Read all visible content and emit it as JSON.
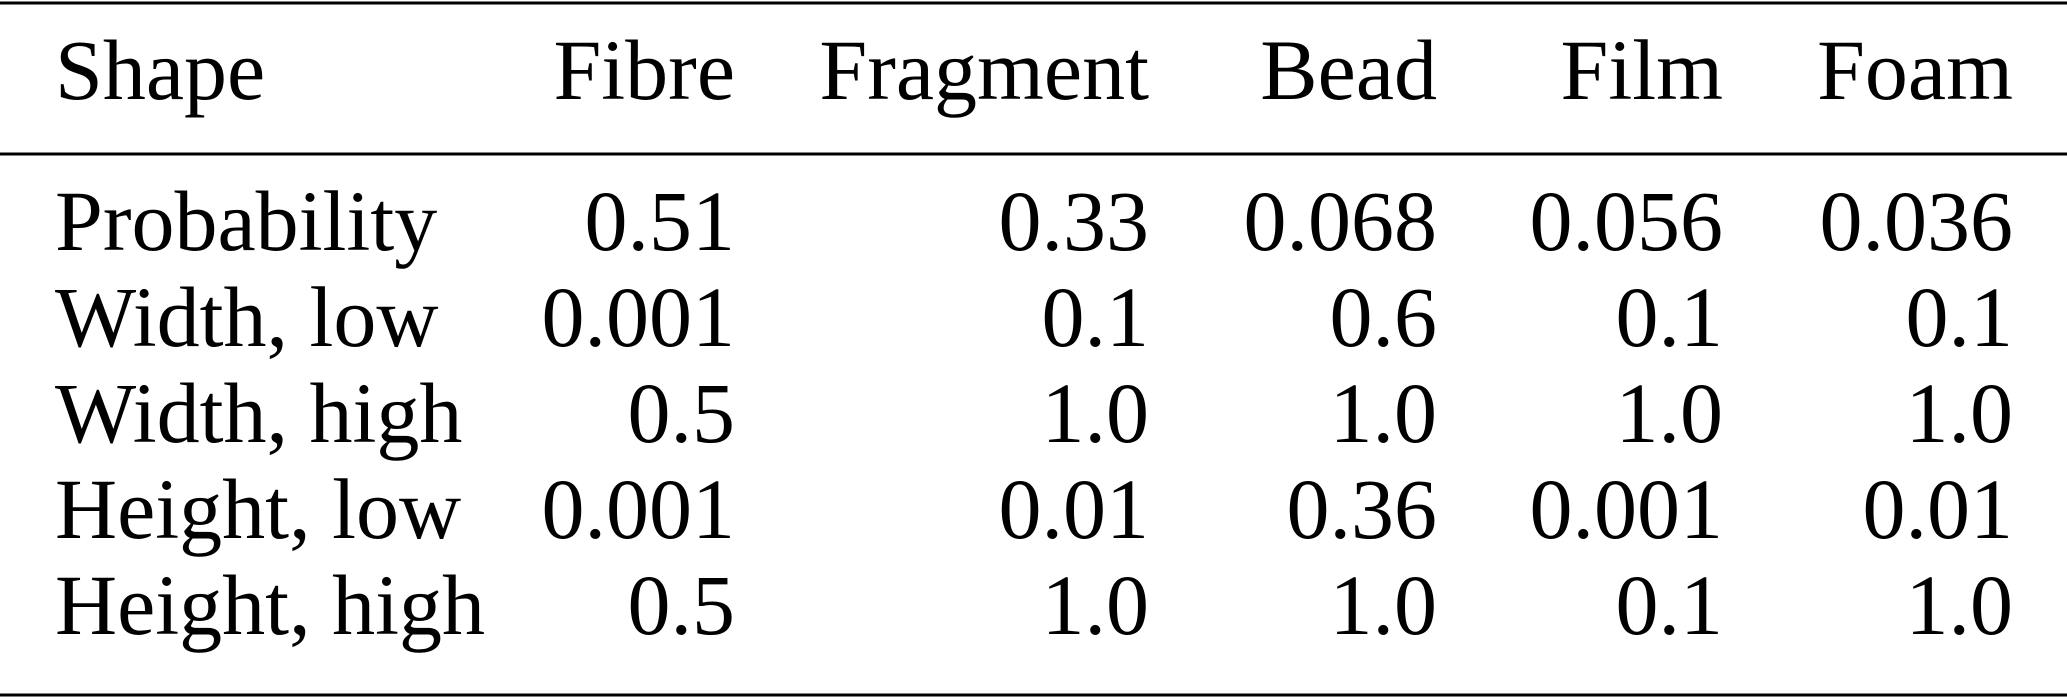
{
  "table": {
    "header": [
      "Shape",
      "Fibre",
      "Fragment",
      "Bead",
      "Film",
      "Foam"
    ],
    "rows": [
      [
        "Probability",
        "0.51",
        "0.33",
        "0.068",
        "0.056",
        "0.036"
      ],
      [
        "Width, low",
        "0.001",
        "0.1",
        "0.6",
        "0.1",
        "0.1"
      ],
      [
        "Width, high",
        "0.5",
        "1.0",
        "1.0",
        "1.0",
        "1.0"
      ],
      [
        "Height, low",
        "0.001",
        "0.01",
        "0.36",
        "0.001",
        "0.01"
      ],
      [
        "Height, high",
        "0.5",
        "1.0",
        "1.0",
        "0.1",
        "1.0"
      ]
    ]
  }
}
